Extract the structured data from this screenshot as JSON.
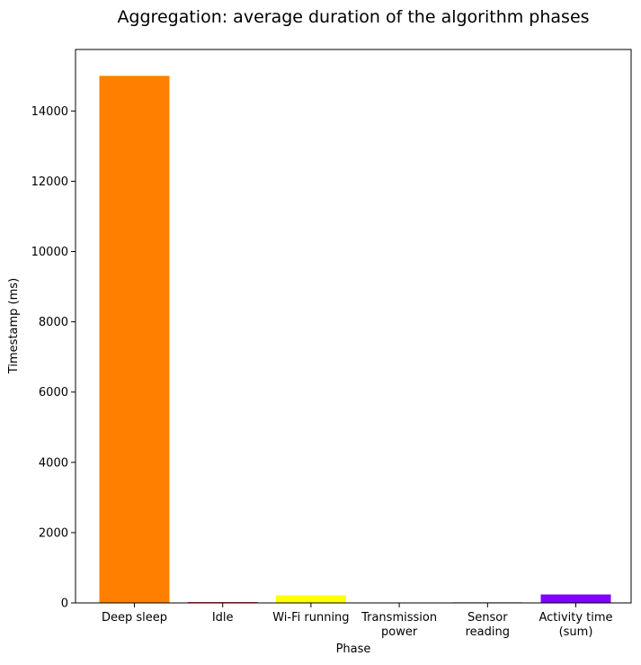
{
  "chart_data": {
    "type": "bar",
    "title": "Aggregation: average duration of the algorithm phases",
    "xlabel": "Phase",
    "ylabel": "Timestamp (ms)",
    "ylim": [
      0,
      15750
    ],
    "yticks": [
      0,
      2000,
      4000,
      6000,
      8000,
      10000,
      12000,
      14000
    ],
    "grid": false,
    "categories": [
      [
        "Deep sleep"
      ],
      [
        "Idle"
      ],
      [
        "Wi-Fi running"
      ],
      [
        "Transmission",
        "power"
      ],
      [
        "Sensor",
        "reading"
      ],
      [
        "Activity time",
        "(sum)"
      ]
    ],
    "values": [
      15000,
      22,
      215,
      3,
      15,
      240
    ],
    "colors": [
      "#ff8000",
      "#cc0000",
      "#ffff00",
      "#ffffff",
      "#0000cc",
      "#8000ff"
    ]
  }
}
